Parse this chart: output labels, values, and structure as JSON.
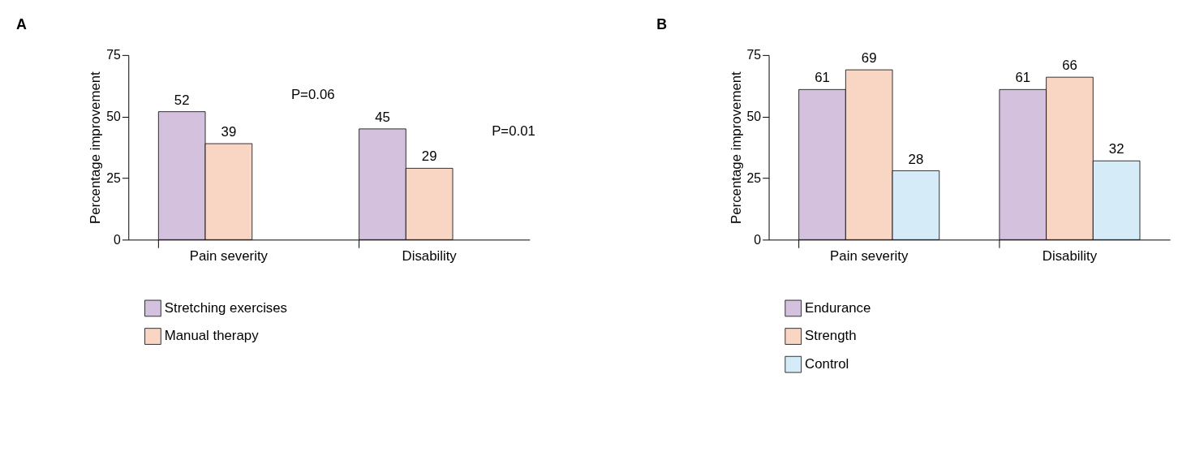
{
  "chart_data": [
    {
      "type": "bar",
      "title": "A",
      "ylabel": "Percentage improvement",
      "categories": [
        "Pain severity",
        "Disability"
      ],
      "series": [
        {
          "name": "Stretching exercises",
          "color": "#d4c1de",
          "values": [
            52,
            45
          ]
        },
        {
          "name": "Manual  therapy",
          "color": "#f9d5c3",
          "values": [
            39,
            29
          ]
        }
      ],
      "ylim": [
        0,
        75
      ],
      "yticks": [
        0,
        25,
        50,
        75
      ],
      "data_labels": true,
      "grid": false,
      "legend": "bottom left",
      "annotations": [
        "P=0.06",
        "P=0.01"
      ]
    },
    {
      "type": "bar",
      "title": "B",
      "ylabel": "Percentage improvement",
      "categories": [
        "Pain severity",
        "Disability"
      ],
      "series": [
        {
          "name": "Endurance",
          "color": "#d4c1de",
          "values": [
            61,
            61
          ]
        },
        {
          "name": "Strength",
          "color": "#f9d5c3",
          "values": [
            69,
            66
          ]
        },
        {
          "name": "Control",
          "color": "#d5ecf8",
          "values": [
            28,
            32
          ]
        }
      ],
      "ylim": [
        0,
        75
      ],
      "yticks": [
        0,
        25,
        50,
        75
      ],
      "data_labels": true,
      "grid": false,
      "legend": "bottom left"
    }
  ]
}
